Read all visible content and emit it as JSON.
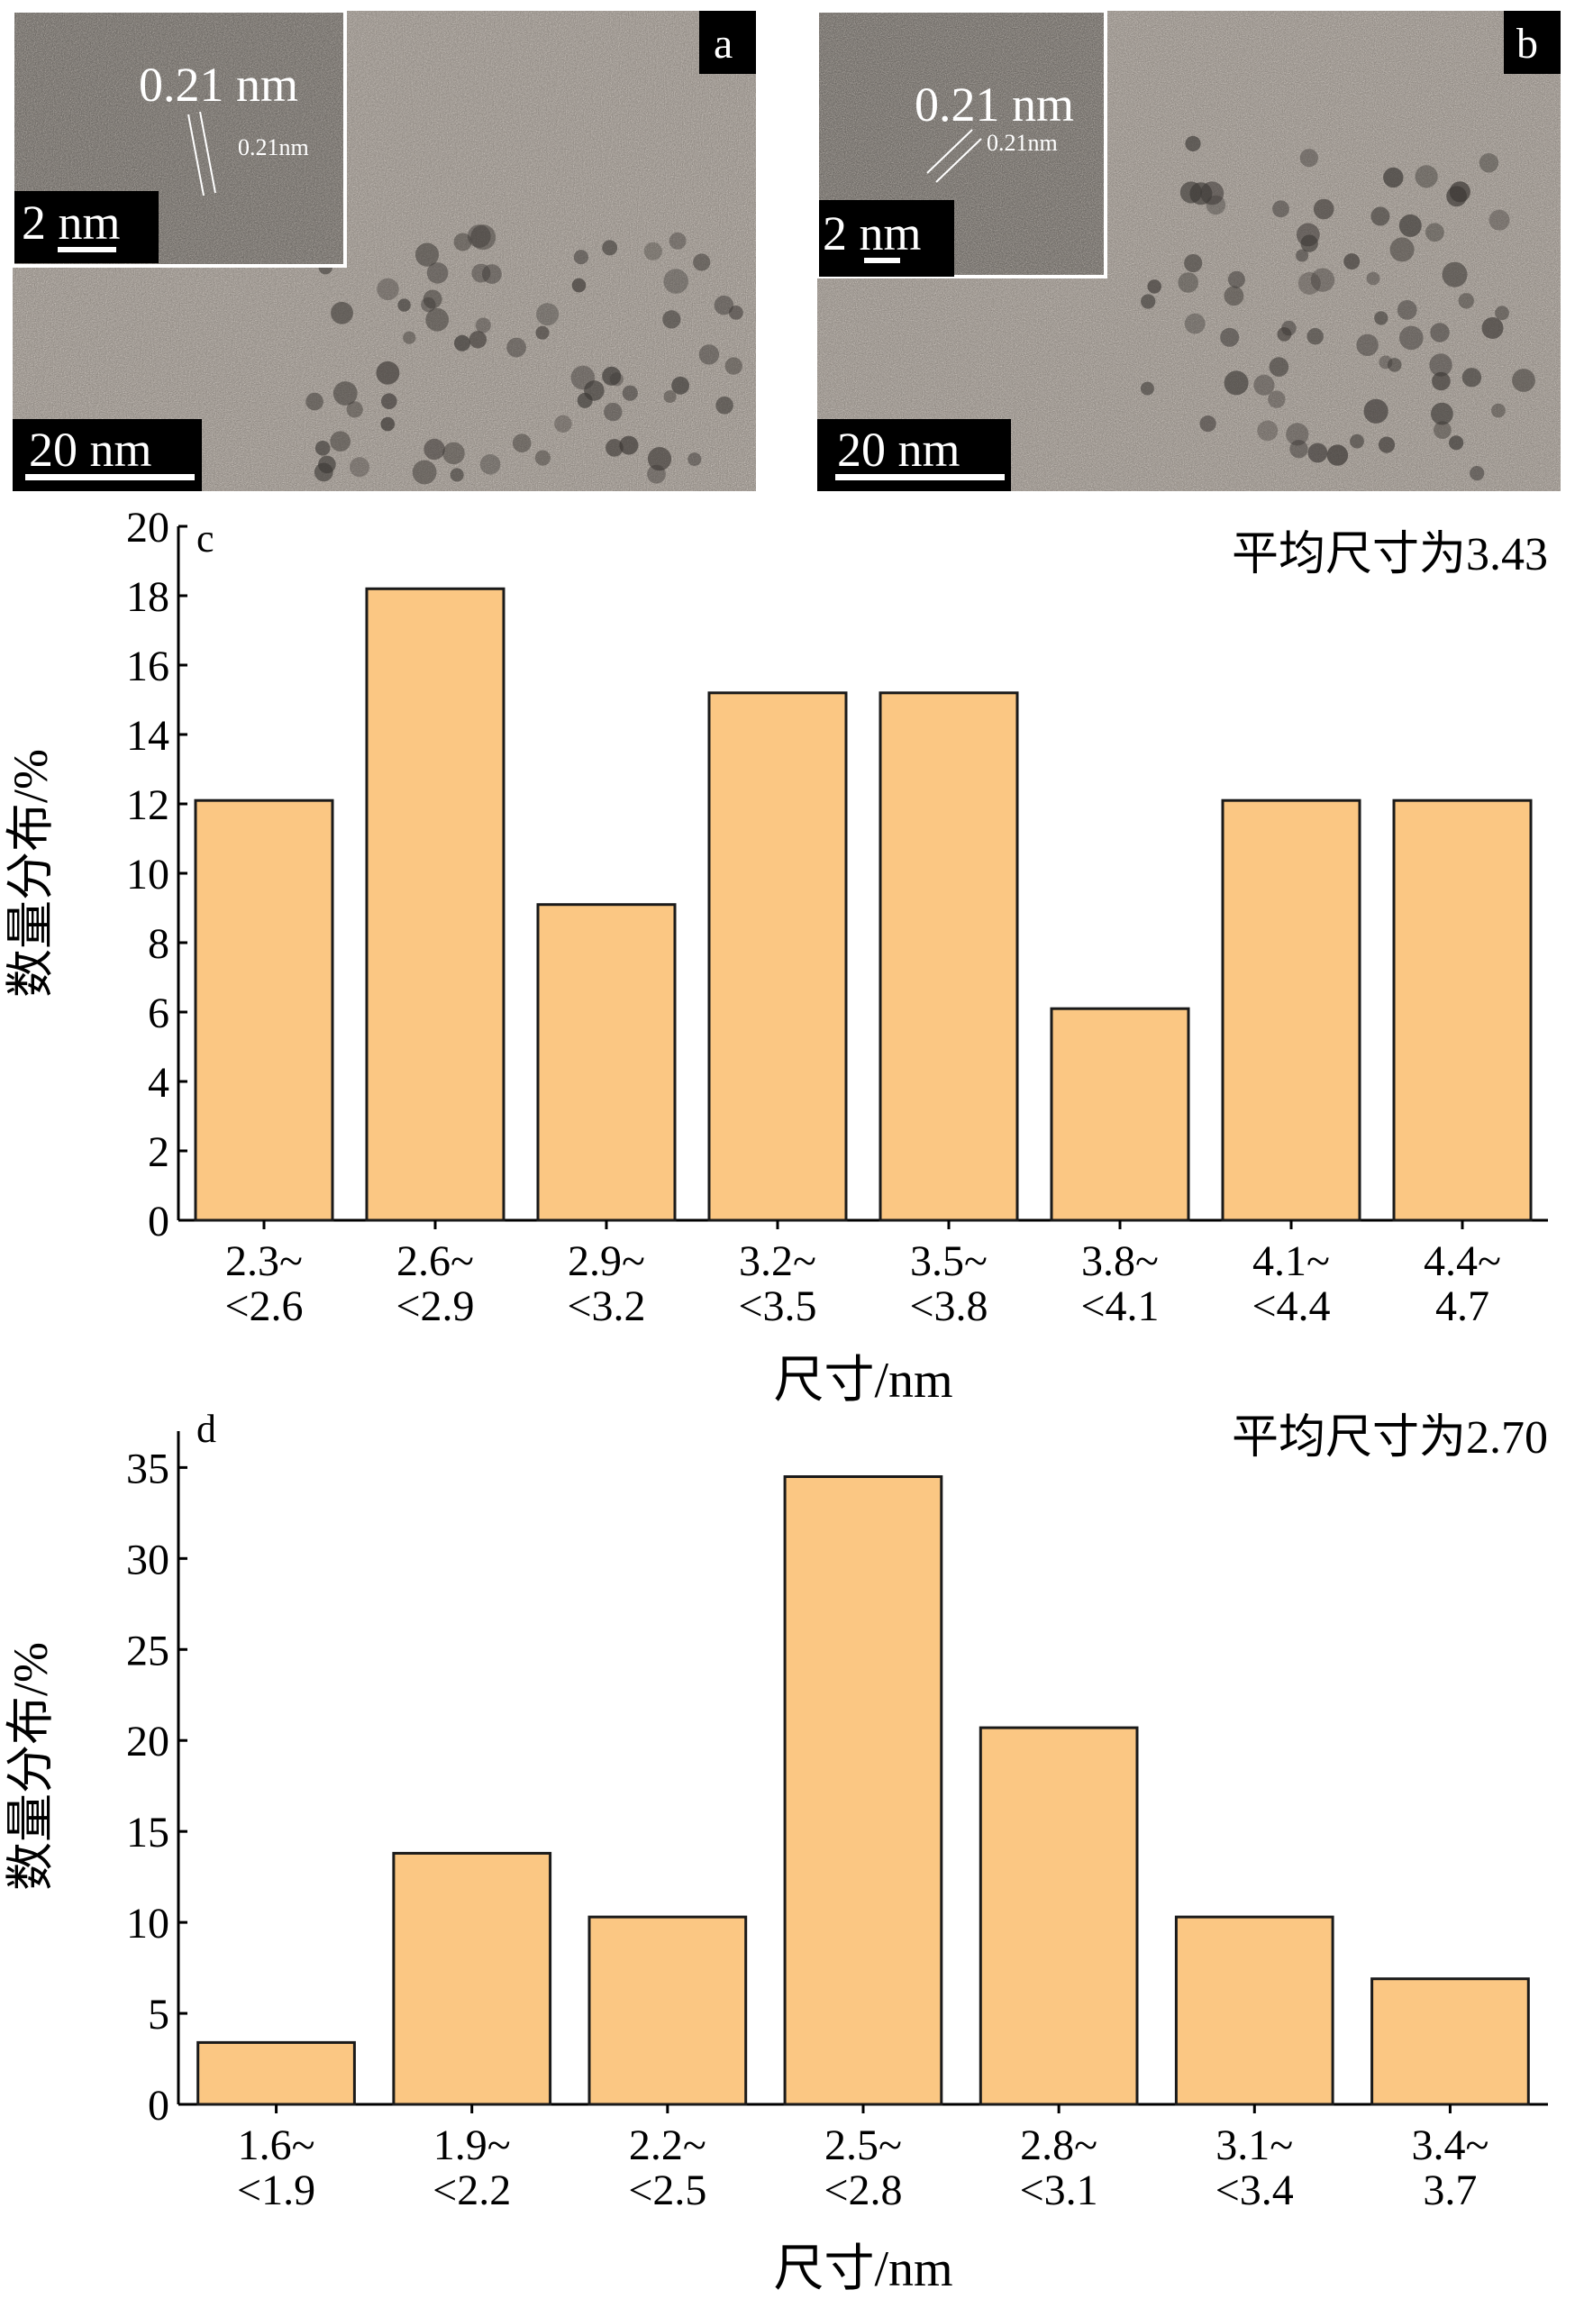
{
  "panels": {
    "a": {
      "letter": "a",
      "scalebar": "20 nm",
      "inset_scalebar": "2 nm",
      "inset_spacing_big": "0.21 nm",
      "inset_spacing_small": "0.21nm"
    },
    "b": {
      "letter": "b",
      "scalebar": "20 nm",
      "inset_scalebar": "2 nm",
      "inset_spacing_big": "0.21 nm",
      "inset_spacing_small": "0.21nm"
    }
  },
  "colors": {
    "bar_fill": "#fbc783",
    "bar_stroke": "#1a1a1a",
    "axis": "#000000",
    "tem_base": "#8c8782"
  },
  "chart_data": [
    {
      "type": "bar",
      "panel_letter": "c",
      "title": "平均尺寸为3.43",
      "xlabel": "尺寸/nm",
      "ylabel": "数量分布/%",
      "ylim": [
        0,
        20
      ],
      "yticks": [
        0,
        2,
        4,
        6,
        8,
        10,
        12,
        14,
        16,
        18,
        20
      ],
      "categories": [
        [
          "2.3~",
          "<2.6"
        ],
        [
          "2.6~",
          "<2.9"
        ],
        [
          "2.9~",
          "<3.2"
        ],
        [
          "3.2~",
          "<3.5"
        ],
        [
          "3.5~",
          "<3.8"
        ],
        [
          "3.8~",
          "<4.1"
        ],
        [
          "4.1~",
          "<4.4"
        ],
        [
          "4.4~",
          "4.7"
        ]
      ],
      "values": [
        12.1,
        18.2,
        9.1,
        15.2,
        15.2,
        6.1,
        12.1,
        12.1
      ],
      "grid": false
    },
    {
      "type": "bar",
      "panel_letter": "d",
      "title": "平均尺寸为2.70",
      "xlabel": "尺寸/nm",
      "ylabel": "数量分布/%",
      "ylim": [
        0,
        37
      ],
      "yticks": [
        0,
        5,
        10,
        15,
        20,
        25,
        30,
        35
      ],
      "categories": [
        [
          "1.6~",
          "<1.9"
        ],
        [
          "1.9~",
          "<2.2"
        ],
        [
          "2.2~",
          "<2.5"
        ],
        [
          "2.5~",
          "<2.8"
        ],
        [
          "2.8~",
          "<3.1"
        ],
        [
          "3.1~",
          "<3.4"
        ],
        [
          "3.4~",
          "3.7"
        ]
      ],
      "values": [
        3.4,
        13.8,
        10.3,
        34.5,
        20.7,
        10.3,
        6.9
      ],
      "grid": false
    }
  ]
}
